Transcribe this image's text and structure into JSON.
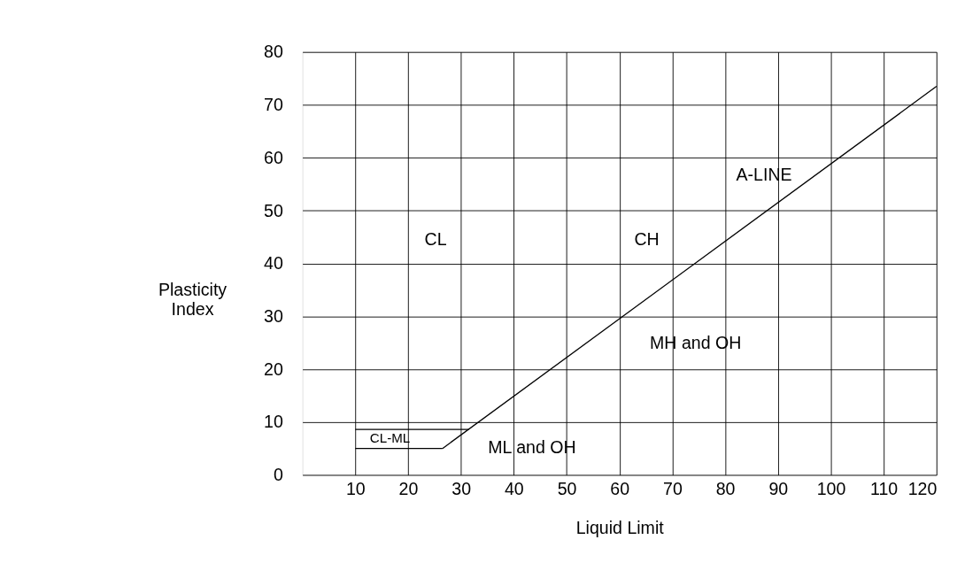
{
  "chart_data": {
    "type": "line",
    "xlabel": "Liquid Limit",
    "ylabel": "Plasticity Index",
    "xlim": [
      0,
      120
    ],
    "xticks": [
      10,
      20,
      30,
      40,
      50,
      60,
      70,
      80,
      90,
      100,
      110,
      120
    ],
    "ylim": [
      0,
      80
    ],
    "yticks": [
      0,
      10,
      20,
      30,
      40,
      50,
      60,
      70,
      80
    ],
    "grid": true,
    "marker": "none",
    "line_style": "solid",
    "series": [
      {
        "color": "#000000",
        "x": [
          26.5,
          120
        ],
        "values": [
          5,
          73.5
        ]
      },
      {
        "color": "#000000",
        "x": [
          10,
          26.5
        ],
        "values": [
          5,
          5
        ]
      },
      {
        "color": "#000000",
        "x": [
          10,
          31.5
        ],
        "values": [
          8.6,
          8.6
        ]
      }
    ],
    "annotations": [
      "CL",
      "CH",
      "A-LINE",
      "MH and OH",
      "ML and OH",
      "CL-ML"
    ]
  }
}
